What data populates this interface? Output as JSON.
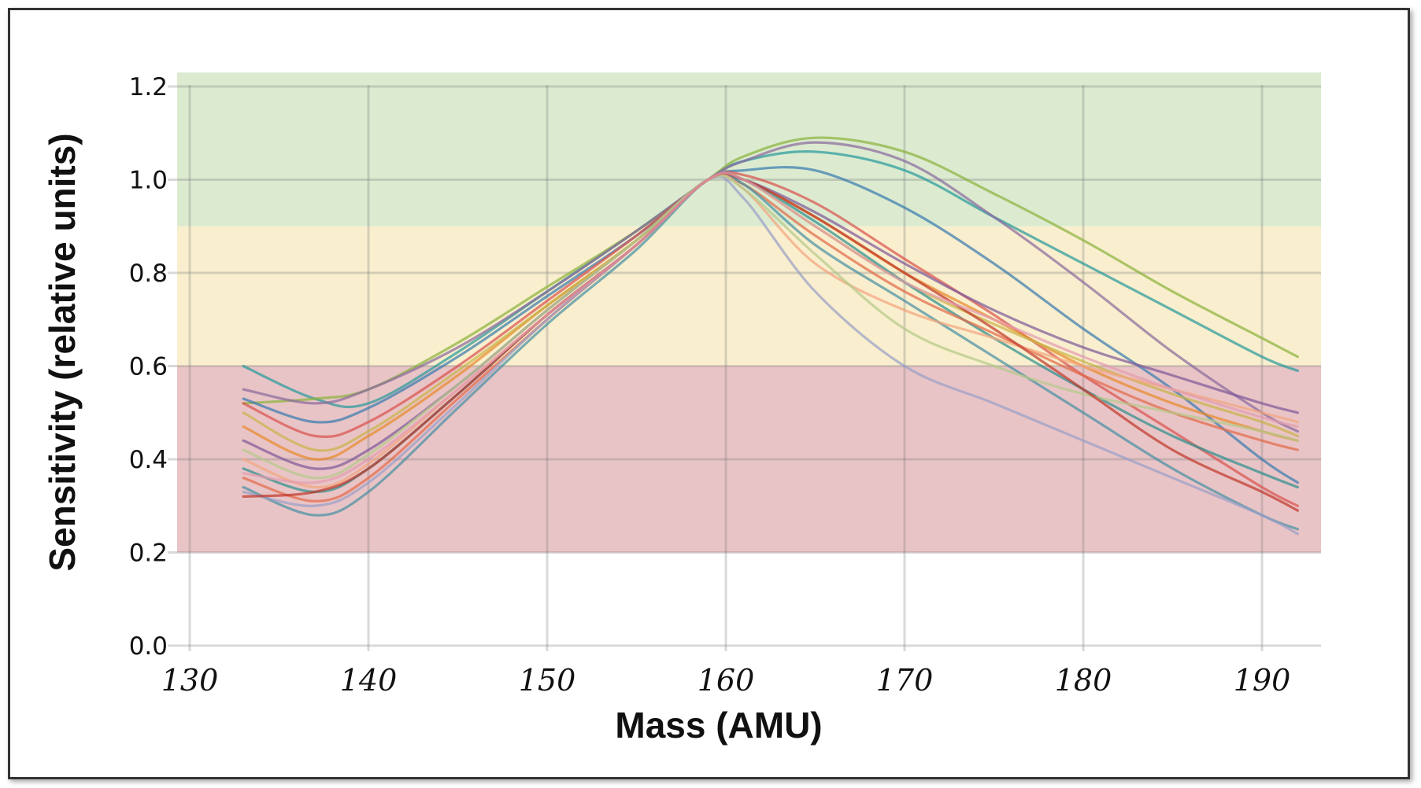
{
  "chart_data": {
    "type": "line",
    "xlabel": "Mass (AMU)",
    "ylabel": "Sensitivity (relative units)",
    "xlim": [
      130,
      192
    ],
    "ylim": [
      0.0,
      1.2
    ],
    "x_ticks": [
      "130",
      "140",
      "150",
      "160",
      "170",
      "180",
      "190"
    ],
    "y_ticks": [
      "0.0",
      "0.2",
      "0.4",
      "0.6",
      "0.8",
      "1.0",
      "1.2"
    ],
    "grid": true,
    "bands": [
      {
        "from": 0.2,
        "to": 0.6,
        "color": "#e9c4c6"
      },
      {
        "from": 0.6,
        "to": 0.9,
        "color": "#f9efce"
      },
      {
        "from": 0.9,
        "to": 1.23,
        "color": "#dcebd0"
      }
    ],
    "x": [
      133,
      137,
      140,
      145,
      150,
      155,
      159,
      161,
      165,
      170,
      175,
      180,
      185,
      190,
      192
    ],
    "series": [
      {
        "color": "#2a9a9c",
        "values": [
          0.6,
          0.53,
          0.52,
          0.63,
          0.76,
          0.89,
          1.0,
          1.04,
          1.06,
          1.02,
          0.92,
          0.82,
          0.72,
          0.62,
          0.59
        ]
      },
      {
        "color": "#8cb33e",
        "values": [
          0.52,
          0.53,
          0.55,
          0.65,
          0.77,
          0.89,
          1.0,
          1.05,
          1.09,
          1.06,
          0.97,
          0.87,
          0.76,
          0.66,
          0.62
        ]
      },
      {
        "color": "#8a6b9e",
        "values": [
          0.55,
          0.52,
          0.55,
          0.64,
          0.76,
          0.89,
          1.0,
          1.04,
          1.08,
          1.04,
          0.92,
          0.78,
          0.63,
          0.5,
          0.46
        ]
      },
      {
        "color": "#3a7cb0",
        "values": [
          0.53,
          0.48,
          0.51,
          0.62,
          0.75,
          0.88,
          1.0,
          1.02,
          1.02,
          0.94,
          0.82,
          0.68,
          0.55,
          0.4,
          0.35
        ]
      },
      {
        "color": "#d9534f",
        "values": [
          0.52,
          0.45,
          0.48,
          0.6,
          0.74,
          0.88,
          1.0,
          1.01,
          0.95,
          0.83,
          0.71,
          0.58,
          0.46,
          0.34,
          0.3
        ]
      },
      {
        "color": "#e8892b",
        "values": [
          0.47,
          0.4,
          0.45,
          0.58,
          0.73,
          0.87,
          1.0,
          1.0,
          0.92,
          0.8,
          0.7,
          0.6,
          0.52,
          0.46,
          0.44
        ]
      },
      {
        "color": "#7f5a9a",
        "values": [
          0.44,
          0.38,
          0.42,
          0.56,
          0.72,
          0.87,
          1.0,
          1.0,
          0.93,
          0.82,
          0.72,
          0.64,
          0.58,
          0.52,
          0.5
        ]
      },
      {
        "color": "#c9b34a",
        "values": [
          0.5,
          0.42,
          0.46,
          0.59,
          0.73,
          0.87,
          1.0,
          1.0,
          0.9,
          0.78,
          0.69,
          0.61,
          0.54,
          0.48,
          0.45
        ]
      },
      {
        "color": "#2f8f8f",
        "values": [
          0.38,
          0.33,
          0.38,
          0.54,
          0.71,
          0.86,
          1.0,
          1.0,
          0.91,
          0.78,
          0.66,
          0.55,
          0.45,
          0.37,
          0.34
        ]
      },
      {
        "color": "#e26b4b",
        "values": [
          0.36,
          0.31,
          0.36,
          0.53,
          0.7,
          0.86,
          1.0,
          0.99,
          0.88,
          0.76,
          0.67,
          0.58,
          0.5,
          0.44,
          0.42
        ]
      },
      {
        "color": "#4a90a4",
        "values": [
          0.34,
          0.28,
          0.33,
          0.51,
          0.69,
          0.85,
          1.0,
          0.99,
          0.86,
          0.74,
          0.62,
          0.5,
          0.38,
          0.28,
          0.25
        ]
      },
      {
        "color": "#f2a57e",
        "values": [
          0.4,
          0.34,
          0.39,
          0.55,
          0.71,
          0.86,
          1.0,
          0.98,
          0.82,
          0.72,
          0.66,
          0.6,
          0.55,
          0.5,
          0.48
        ]
      },
      {
        "color": "#9aa0c8",
        "values": [
          0.33,
          0.3,
          0.35,
          0.52,
          0.7,
          0.86,
          1.0,
          0.96,
          0.76,
          0.6,
          0.52,
          0.44,
          0.36,
          0.28,
          0.24
        ]
      },
      {
        "color": "#b5c98a",
        "values": [
          0.42,
          0.36,
          0.41,
          0.56,
          0.72,
          0.87,
          1.0,
          0.98,
          0.84,
          0.68,
          0.6,
          0.54,
          0.5,
          0.46,
          0.44
        ]
      },
      {
        "color": "#c0392b",
        "values": [
          0.32,
          0.33,
          0.38,
          0.54,
          0.71,
          0.86,
          1.0,
          1.0,
          0.92,
          0.8,
          0.68,
          0.55,
          0.42,
          0.33,
          0.29
        ]
      },
      {
        "color": "#e39bb0",
        "values": [
          0.37,
          0.35,
          0.4,
          0.55,
          0.71,
          0.86,
          1.0,
          1.0,
          0.9,
          0.78,
          0.7,
          0.62,
          0.55,
          0.49,
          0.47
        ]
      }
    ]
  }
}
